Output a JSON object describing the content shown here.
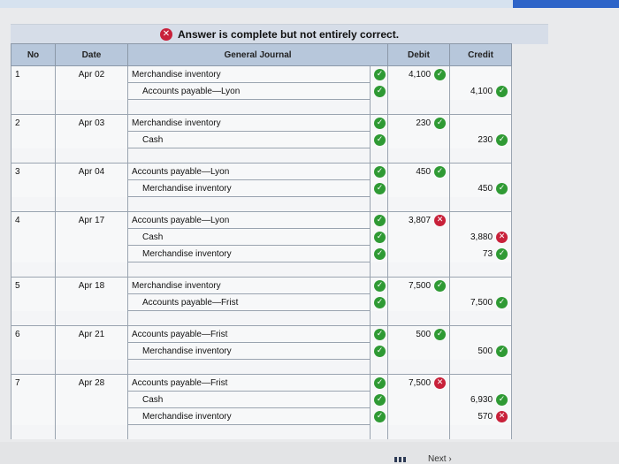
{
  "banner": {
    "status_icon": "x-icon",
    "text": "Answer is complete but not entirely correct."
  },
  "headers": {
    "no": "No",
    "date": "Date",
    "journal": "General Journal",
    "debit": "Debit",
    "credit": "Credit"
  },
  "entries": [
    {
      "no": "1",
      "date": "Apr 02",
      "lines": [
        {
          "account": "Merchandise inventory",
          "credit_line": false,
          "mark": "check",
          "debit": "4,100",
          "debit_status": "check",
          "credit": "",
          "credit_status": ""
        },
        {
          "account": "Accounts payable—Lyon",
          "credit_line": true,
          "mark": "check",
          "debit": "",
          "debit_status": "",
          "credit": "4,100",
          "credit_status": "check"
        }
      ]
    },
    {
      "no": "2",
      "date": "Apr 03",
      "lines": [
        {
          "account": "Merchandise inventory",
          "credit_line": false,
          "mark": "check",
          "debit": "230",
          "debit_status": "check",
          "credit": "",
          "credit_status": ""
        },
        {
          "account": "Cash",
          "credit_line": true,
          "mark": "check",
          "debit": "",
          "debit_status": "",
          "credit": "230",
          "credit_status": "check"
        }
      ]
    },
    {
      "no": "3",
      "date": "Apr 04",
      "lines": [
        {
          "account": "Accounts payable—Lyon",
          "credit_line": false,
          "mark": "check",
          "debit": "450",
          "debit_status": "check",
          "credit": "",
          "credit_status": ""
        },
        {
          "account": "Merchandise inventory",
          "credit_line": true,
          "mark": "check",
          "debit": "",
          "debit_status": "",
          "credit": "450",
          "credit_status": "check"
        }
      ]
    },
    {
      "no": "4",
      "date": "Apr 17",
      "lines": [
        {
          "account": "Accounts payable—Lyon",
          "credit_line": false,
          "mark": "check",
          "debit": "3,807",
          "debit_status": "x",
          "credit": "",
          "credit_status": ""
        },
        {
          "account": "Cash",
          "credit_line": true,
          "mark": "check",
          "debit": "",
          "debit_status": "",
          "credit": "3,880",
          "credit_status": "x"
        },
        {
          "account": "Merchandise inventory",
          "credit_line": true,
          "mark": "check",
          "debit": "",
          "debit_status": "",
          "credit": "73",
          "credit_status": "check"
        }
      ]
    },
    {
      "no": "5",
      "date": "Apr 18",
      "lines": [
        {
          "account": "Merchandise inventory",
          "credit_line": false,
          "mark": "check",
          "debit": "7,500",
          "debit_status": "check",
          "credit": "",
          "credit_status": ""
        },
        {
          "account": "Accounts payable—Frist",
          "credit_line": true,
          "mark": "check",
          "debit": "",
          "debit_status": "",
          "credit": "7,500",
          "credit_status": "check"
        }
      ]
    },
    {
      "no": "6",
      "date": "Apr 21",
      "lines": [
        {
          "account": "Accounts payable—Frist",
          "credit_line": false,
          "mark": "check",
          "debit": "500",
          "debit_status": "check",
          "credit": "",
          "credit_status": ""
        },
        {
          "account": "Merchandise inventory",
          "credit_line": true,
          "mark": "check",
          "debit": "",
          "debit_status": "",
          "credit": "500",
          "credit_status": "check"
        }
      ]
    },
    {
      "no": "7",
      "date": "Apr 28",
      "lines": [
        {
          "account": "Accounts payable—Frist",
          "credit_line": false,
          "mark": "check",
          "debit": "7,500",
          "debit_status": "x",
          "credit": "",
          "credit_status": ""
        },
        {
          "account": "Cash",
          "credit_line": true,
          "mark": "check",
          "debit": "",
          "debit_status": "",
          "credit": "6,930",
          "credit_status": "check"
        },
        {
          "account": "Merchandise inventory",
          "credit_line": true,
          "mark": "check",
          "debit": "",
          "debit_status": "",
          "credit": "570",
          "credit_status": "x"
        }
      ]
    }
  ],
  "footer": {
    "next_label": "Next ›"
  },
  "colors": {
    "header_bg": "#b7c7db",
    "check": "#2f9a34",
    "x": "#c8213a"
  }
}
